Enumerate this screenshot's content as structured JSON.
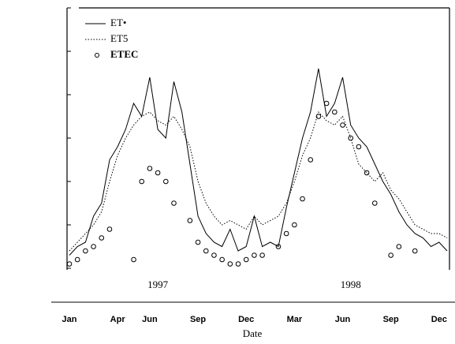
{
  "chart_data": {
    "type": "line",
    "x_label": "Date",
    "year_labels": [
      "1997",
      "1998"
    ],
    "categories": [
      "Jan",
      null,
      null,
      null,
      null,
      null,
      "Apr",
      null,
      null,
      null,
      "Jun",
      null,
      null,
      null,
      null,
      null,
      "Sep",
      null,
      null,
      null,
      null,
      null,
      "Dec",
      null,
      null,
      null,
      null,
      null,
      "Mar",
      null,
      null,
      null,
      null,
      null,
      "Jun",
      null,
      null,
      null,
      null,
      null,
      "Sep",
      null,
      null,
      null,
      null,
      null,
      "Dec",
      null
    ],
    "series": [
      {
        "name": "ET•",
        "color": "#000000",
        "style": "solid",
        "values": [
          0.3,
          0.5,
          0.6,
          1.2,
          1.5,
          2.5,
          2.8,
          3.2,
          3.8,
          3.5,
          4.4,
          3.2,
          3.0,
          4.3,
          3.6,
          2.4,
          1.2,
          0.8,
          0.6,
          0.5,
          0.9,
          0.4,
          0.5,
          1.2,
          0.5,
          0.6,
          0.5,
          1.4,
          2.2,
          3.0,
          3.6,
          4.6,
          3.5,
          3.8,
          4.4,
          3.3,
          3.0,
          2.8,
          2.4,
          2.0,
          1.7,
          1.3,
          1.0,
          0.8,
          0.7,
          0.5,
          0.6,
          0.4
        ]
      },
      {
        "name": "ET5",
        "color": "#000000",
        "style": "dotted",
        "values": [
          0.4,
          0.6,
          0.8,
          1.0,
          1.3,
          2.0,
          2.6,
          3.0,
          3.3,
          3.5,
          3.6,
          3.4,
          3.3,
          3.5,
          3.2,
          2.8,
          2.0,
          1.5,
          1.2,
          1.0,
          1.1,
          1.0,
          0.9,
          1.2,
          1.0,
          1.1,
          1.2,
          1.5,
          2.0,
          2.6,
          3.0,
          3.6,
          3.4,
          3.3,
          3.5,
          3.0,
          2.4,
          2.2,
          2.0,
          2.2,
          1.8,
          1.6,
          1.3,
          1.0,
          0.9,
          0.8,
          0.8,
          0.7
        ]
      },
      {
        "name": "ETEC",
        "color": "#000000",
        "style": "marker",
        "values": [
          0.1,
          0.2,
          0.4,
          0.5,
          0.7,
          0.9,
          null,
          null,
          0.2,
          2.0,
          2.3,
          2.2,
          2.0,
          1.5,
          null,
          1.1,
          0.6,
          0.4,
          0.3,
          0.2,
          0.1,
          0.1,
          0.2,
          0.3,
          0.3,
          null,
          0.5,
          0.8,
          1.0,
          1.6,
          2.5,
          3.5,
          3.8,
          3.6,
          3.3,
          3.0,
          2.8,
          2.2,
          1.5,
          null,
          0.3,
          0.5,
          null,
          0.4,
          null,
          null,
          null,
          null
        ]
      }
    ],
    "ylim": [
      0,
      6
    ],
    "yticks": [
      0,
      1,
      2,
      3,
      4,
      5,
      6
    ]
  }
}
